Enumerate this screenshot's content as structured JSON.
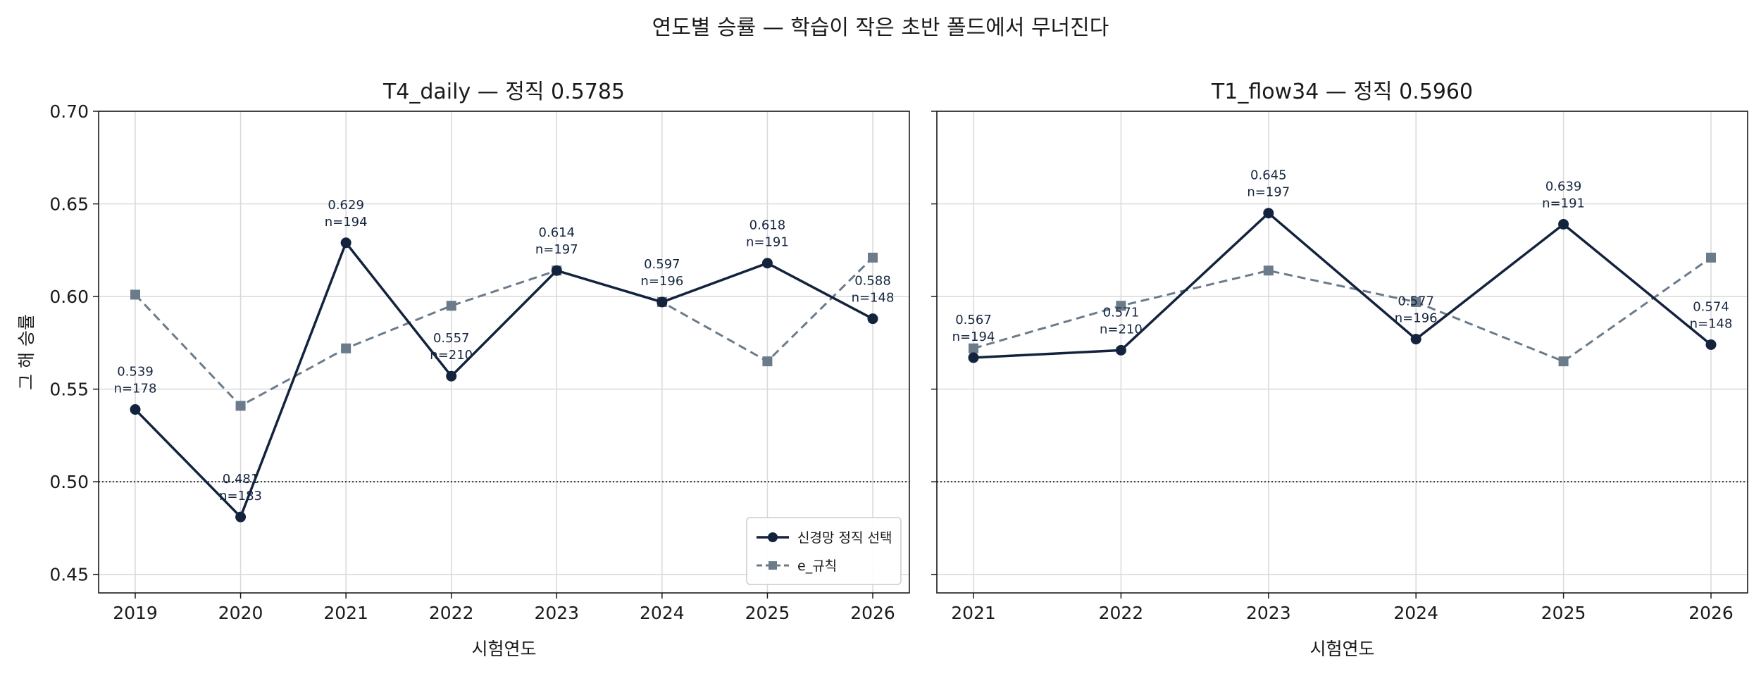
{
  "figure": {
    "suptitle": "연도별 승률 — 학습이 작은 초반 폴드에서 무너진다"
  },
  "colors": {
    "primary": "#13233d",
    "secondary": "#6b7b8a",
    "grid": "#d9d9d9",
    "reference_line": "#000000"
  },
  "chart_data": [
    {
      "type": "line",
      "title": "T4_daily — 정직 0.5785",
      "xlabel": "시험연도",
      "ylabel": "그 해 승률",
      "ylim": [
        0.44,
        0.7
      ],
      "yticks": [
        0.45,
        0.5,
        0.55,
        0.6,
        0.65,
        0.7
      ],
      "ytick_labels": [
        "0.45",
        "0.50",
        "0.55",
        "0.60",
        "0.65",
        "0.70"
      ],
      "x": [
        "2019",
        "2020",
        "2021",
        "2022",
        "2023",
        "2024",
        "2025",
        "2026"
      ],
      "reference_y": 0.5,
      "grid": true,
      "legend_position": "lower-right",
      "series": [
        {
          "name": "신경망 정직 선택",
          "style": "solid-circle",
          "values": [
            0.539,
            0.481,
            0.629,
            0.557,
            0.614,
            0.597,
            0.618,
            0.588
          ],
          "labels": [
            "0.539",
            "0.481",
            "0.629",
            "0.557",
            "0.614",
            "0.597",
            "0.618",
            "0.588"
          ],
          "n": [
            "n=178",
            "n=183",
            "n=194",
            "n=210",
            "n=197",
            "n=196",
            "n=191",
            "n=148"
          ]
        },
        {
          "name": "e_규칙",
          "style": "dashed-square",
          "values": [
            0.601,
            0.541,
            0.572,
            0.595,
            0.614,
            0.597,
            0.565,
            0.621
          ]
        }
      ]
    },
    {
      "type": "line",
      "title": "T1_flow34 — 정직 0.5960",
      "xlabel": "시험연도",
      "ylabel": "",
      "ylim": [
        0.44,
        0.7
      ],
      "yticks": [
        0.45,
        0.5,
        0.55,
        0.6,
        0.65,
        0.7
      ],
      "ytick_labels": [],
      "x": [
        "2021",
        "2022",
        "2023",
        "2024",
        "2025",
        "2026"
      ],
      "reference_y": 0.5,
      "grid": true,
      "series": [
        {
          "name": "",
          "style": "solid-circle",
          "values": [
            0.567,
            0.571,
            0.645,
            0.577,
            0.639,
            0.574
          ],
          "labels": [
            "0.567",
            "0.571",
            "0.645",
            "0.577",
            "0.639",
            "0.574"
          ],
          "n": [
            "n=194",
            "n=210",
            "n=197",
            "n=196",
            "n=191",
            "n=148"
          ]
        },
        {
          "name": "",
          "style": "dashed-square",
          "values": [
            0.572,
            0.595,
            0.614,
            0.597,
            0.565,
            0.621
          ]
        }
      ]
    }
  ]
}
